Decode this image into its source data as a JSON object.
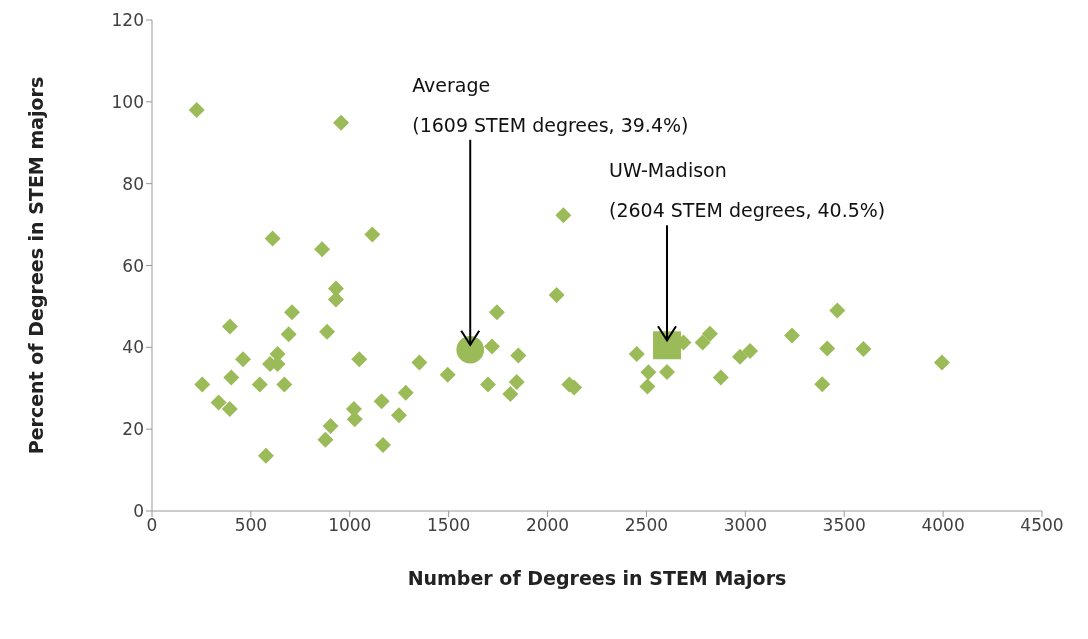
{
  "chart_data": {
    "type": "scatter",
    "xlabel": "Number of Degrees in STEM Majors",
    "ylabel": "Percent of Degrees in STEM majors",
    "xlim": [
      0,
      4500
    ],
    "xticks": [
      0,
      500,
      1000,
      1500,
      2000,
      2500,
      3000,
      3500,
      4000,
      4500
    ],
    "ylim": [
      0,
      120
    ],
    "yticks": [
      0,
      20,
      40,
      60,
      80,
      100,
      120
    ],
    "series": [
      {
        "color": "#9bbb59",
        "marker": "diamond",
        "x": [
          226,
          956,
          2080,
          610,
          1114,
          860,
          930,
          930,
          2046,
          708,
          1744,
          394,
          691,
          885,
          1719,
          1852,
          460,
          635,
          597,
          635,
          1048,
          1352,
          1495,
          254,
          401,
          545,
          669,
          1699,
          1844,
          1812,
          2110,
          2134,
          337,
          393,
          1021,
          1025,
          1161,
          1283,
          1249,
          903,
          877,
          1168,
          576,
          2451,
          2687,
          2784,
          2821,
          2510,
          2604,
          2505,
          2973,
          3024,
          2876,
          3236,
          3465,
          3414,
          3597,
          3389,
          3994
        ],
        "values": [
          98.0,
          94.9,
          72.3,
          66.6,
          67.6,
          64.0,
          54.4,
          51.7,
          52.8,
          48.6,
          48.6,
          45.1,
          43.2,
          43.8,
          40.2,
          38.0,
          37.1,
          38.4,
          35.9,
          35.9,
          37.1,
          36.3,
          33.3,
          30.9,
          32.6,
          30.9,
          30.9,
          30.9,
          31.5,
          28.6,
          30.9,
          30.2,
          26.5,
          24.9,
          24.9,
          22.4,
          26.8,
          28.9,
          23.4,
          20.8,
          17.4,
          16.1,
          13.5,
          38.4,
          41.2,
          41.2,
          43.3,
          33.9,
          34.0,
          30.4,
          37.7,
          39.1,
          32.6,
          42.9,
          49.0,
          39.7,
          39.6,
          31.0,
          36.3
        ]
      },
      {
        "color": "#9bbb59",
        "marker": "circle",
        "x": [
          1609
        ],
        "values": [
          39.4
        ]
      },
      {
        "color": "#9bbb59",
        "marker": "square",
        "x": [
          2604
        ],
        "values": [
          40.5
        ]
      }
    ],
    "annotations": [
      {
        "text": "Average\n(1609 STEM degrees, 39.4%)",
        "x": 1609,
        "y": 39.4
      },
      {
        "text": "UW-Madison\n(2604 STEM degrees, 40.5%)",
        "x": 2604,
        "y": 40.5
      }
    ]
  }
}
